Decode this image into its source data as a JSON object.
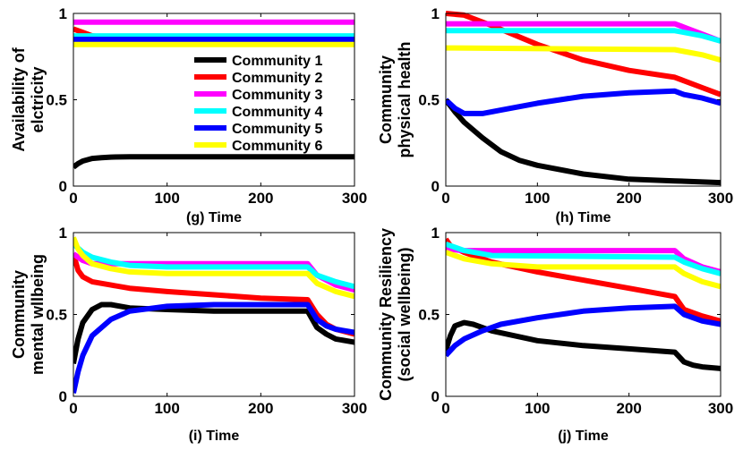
{
  "colors": {
    "Community 1": "#000000",
    "Community 2": "#ff0000",
    "Community 3": "#ff00ff",
    "Community 4": "#00ffff",
    "Community 5": "#0000ff",
    "Community 6": "#ffff00"
  },
  "chart_data": [
    {
      "type": "line",
      "xlabel": "(g) Time",
      "ylabel": [
        "Availability of",
        "elctricity"
      ],
      "xlim": [
        0,
        300
      ],
      "ylim": [
        0,
        1
      ],
      "xticks": [
        0,
        100,
        200,
        300
      ],
      "yticks": [
        0,
        0.5,
        1
      ],
      "xtick_labels": [
        "0",
        "100",
        "200",
        "300"
      ],
      "ytick_labels": [
        "0",
        "0.5",
        "1"
      ],
      "legend": "right",
      "series": [
        {
          "name": "Community 1",
          "x": [
            0,
            5,
            10,
            20,
            30,
            40,
            60,
            100,
            150,
            200,
            250,
            300
          ],
          "y": [
            0.11,
            0.13,
            0.145,
            0.16,
            0.165,
            0.168,
            0.17,
            0.17,
            0.17,
            0.17,
            0.17,
            0.17
          ]
        },
        {
          "name": "Community 2",
          "x": [
            0,
            10,
            20,
            40,
            300
          ],
          "y": [
            0.91,
            0.89,
            0.87,
            0.86,
            0.86
          ]
        },
        {
          "name": "Community 3",
          "x": [
            0,
            300
          ],
          "y": [
            0.95,
            0.95
          ]
        },
        {
          "name": "Community 4",
          "x": [
            0,
            300
          ],
          "y": [
            0.87,
            0.87
          ]
        },
        {
          "name": "Community 5",
          "x": [
            0,
            300
          ],
          "y": [
            0.85,
            0.85
          ]
        },
        {
          "name": "Community 6",
          "x": [
            0,
            300
          ],
          "y": [
            0.82,
            0.82
          ]
        }
      ]
    },
    {
      "type": "line",
      "xlabel": "(h) Time",
      "ylabel": [
        "Community",
        "physical health"
      ],
      "xlim": [
        0,
        300
      ],
      "ylim": [
        0,
        1
      ],
      "xticks": [
        0,
        100,
        200,
        300
      ],
      "yticks": [
        0,
        0.5,
        1
      ],
      "xtick_labels": [
        "0",
        "100",
        "200",
        "300"
      ],
      "ytick_labels": [
        "0",
        "0.5",
        "1"
      ],
      "series": [
        {
          "name": "Community 1",
          "x": [
            0,
            10,
            20,
            40,
            60,
            80,
            100,
            150,
            200,
            250,
            300
          ],
          "y": [
            0.5,
            0.43,
            0.37,
            0.28,
            0.2,
            0.15,
            0.12,
            0.07,
            0.04,
            0.03,
            0.02
          ]
        },
        {
          "name": "Community 2",
          "x": [
            0,
            20,
            50,
            100,
            150,
            200,
            250,
            260,
            280,
            300
          ],
          "y": [
            1.0,
            0.99,
            0.93,
            0.82,
            0.73,
            0.67,
            0.63,
            0.61,
            0.57,
            0.53
          ]
        },
        {
          "name": "Community 3",
          "x": [
            0,
            50,
            250,
            260,
            280,
            300
          ],
          "y": [
            0.94,
            0.94,
            0.94,
            0.92,
            0.88,
            0.84
          ]
        },
        {
          "name": "Community 4",
          "x": [
            0,
            250,
            260,
            280,
            300
          ],
          "y": [
            0.9,
            0.9,
            0.89,
            0.87,
            0.84
          ]
        },
        {
          "name": "Community 5",
          "x": [
            0,
            10,
            20,
            40,
            60,
            100,
            150,
            200,
            250,
            260,
            280,
            300
          ],
          "y": [
            0.5,
            0.45,
            0.42,
            0.42,
            0.44,
            0.48,
            0.52,
            0.54,
            0.55,
            0.53,
            0.51,
            0.48
          ]
        },
        {
          "name": "Community 6",
          "x": [
            0,
            250,
            260,
            280,
            300
          ],
          "y": [
            0.8,
            0.79,
            0.78,
            0.76,
            0.73
          ]
        }
      ]
    },
    {
      "type": "line",
      "xlabel": "(i) Time",
      "ylabel": [
        "Community",
        "mental wllbeing"
      ],
      "xlim": [
        0,
        300
      ],
      "ylim": [
        0,
        1
      ],
      "xticks": [
        0,
        100,
        200,
        300
      ],
      "yticks": [
        0,
        0.5,
        1
      ],
      "xtick_labels": [
        "0",
        "100",
        "200",
        "300"
      ],
      "ytick_labels": [
        "0",
        "0.5",
        "1"
      ],
      "series": [
        {
          "name": "Community 1",
          "x": [
            0,
            5,
            10,
            20,
            30,
            40,
            60,
            100,
            150,
            200,
            250,
            255,
            260,
            270,
            280,
            300
          ],
          "y": [
            0.2,
            0.35,
            0.45,
            0.53,
            0.56,
            0.56,
            0.54,
            0.53,
            0.52,
            0.52,
            0.52,
            0.47,
            0.42,
            0.38,
            0.35,
            0.33
          ]
        },
        {
          "name": "Community 2",
          "x": [
            0,
            5,
            10,
            20,
            40,
            60,
            100,
            150,
            200,
            250,
            260,
            270,
            280,
            300
          ],
          "y": [
            0.87,
            0.77,
            0.73,
            0.7,
            0.68,
            0.66,
            0.64,
            0.62,
            0.6,
            0.59,
            0.5,
            0.44,
            0.41,
            0.38
          ]
        },
        {
          "name": "Community 3",
          "x": [
            0,
            10,
            20,
            40,
            100,
            250,
            260,
            280,
            300
          ],
          "y": [
            0.87,
            0.83,
            0.81,
            0.81,
            0.81,
            0.81,
            0.74,
            0.68,
            0.65
          ]
        },
        {
          "name": "Community 4",
          "x": [
            0,
            10,
            20,
            40,
            60,
            100,
            250,
            260,
            280,
            300
          ],
          "y": [
            0.93,
            0.88,
            0.85,
            0.82,
            0.8,
            0.79,
            0.79,
            0.74,
            0.7,
            0.67
          ]
        },
        {
          "name": "Community 5",
          "x": [
            0,
            5,
            10,
            20,
            40,
            60,
            100,
            150,
            200,
            250,
            260,
            270,
            280,
            300
          ],
          "y": [
            0.02,
            0.15,
            0.25,
            0.37,
            0.47,
            0.52,
            0.55,
            0.56,
            0.56,
            0.56,
            0.47,
            0.43,
            0.41,
            0.39
          ]
        },
        {
          "name": "Community 6",
          "x": [
            0,
            5,
            10,
            20,
            40,
            60,
            100,
            250,
            260,
            280,
            300
          ],
          "y": [
            0.97,
            0.9,
            0.86,
            0.81,
            0.78,
            0.76,
            0.75,
            0.75,
            0.69,
            0.64,
            0.61
          ]
        }
      ]
    },
    {
      "type": "line",
      "xlabel": "(j) Time",
      "ylabel": [
        "Community Resiliency",
        "(social wellbeing)"
      ],
      "xlim": [
        0,
        300
      ],
      "ylim": [
        0,
        1
      ],
      "xticks": [
        0,
        100,
        200,
        300
      ],
      "yticks": [
        0,
        0.5,
        1
      ],
      "xtick_labels": [
        "0",
        "100",
        "200",
        "300"
      ],
      "ytick_labels": [
        "0",
        "0.5",
        "1"
      ],
      "series": [
        {
          "name": "Community 1",
          "x": [
            0,
            5,
            10,
            20,
            30,
            50,
            100,
            150,
            200,
            250,
            255,
            260,
            270,
            280,
            300
          ],
          "y": [
            0.28,
            0.37,
            0.43,
            0.45,
            0.44,
            0.4,
            0.34,
            0.31,
            0.29,
            0.27,
            0.24,
            0.21,
            0.19,
            0.18,
            0.17
          ]
        },
        {
          "name": "Community 2",
          "x": [
            0,
            5,
            20,
            50,
            100,
            150,
            200,
            250,
            260,
            280,
            300
          ],
          "y": [
            0.96,
            0.92,
            0.88,
            0.82,
            0.76,
            0.71,
            0.66,
            0.61,
            0.53,
            0.49,
            0.46
          ]
        },
        {
          "name": "Community 3",
          "x": [
            0,
            20,
            250,
            260,
            280,
            300
          ],
          "y": [
            0.9,
            0.89,
            0.89,
            0.84,
            0.79,
            0.76
          ]
        },
        {
          "name": "Community 4",
          "x": [
            0,
            20,
            50,
            250,
            260,
            280,
            300
          ],
          "y": [
            0.93,
            0.89,
            0.86,
            0.85,
            0.82,
            0.78,
            0.75
          ]
        },
        {
          "name": "Community 5",
          "x": [
            0,
            10,
            20,
            40,
            60,
            100,
            150,
            200,
            250,
            260,
            280,
            300
          ],
          "y": [
            0.25,
            0.31,
            0.35,
            0.4,
            0.44,
            0.48,
            0.52,
            0.54,
            0.55,
            0.5,
            0.46,
            0.44
          ]
        },
        {
          "name": "Community 6",
          "x": [
            0,
            20,
            50,
            100,
            250,
            260,
            280,
            300
          ],
          "y": [
            0.88,
            0.84,
            0.81,
            0.79,
            0.79,
            0.75,
            0.7,
            0.67
          ]
        }
      ]
    }
  ]
}
